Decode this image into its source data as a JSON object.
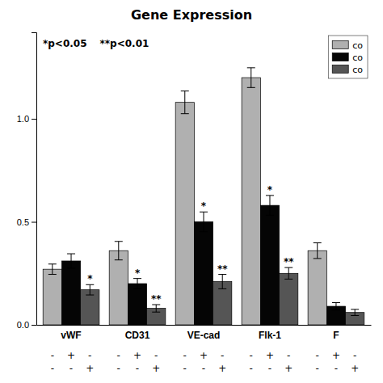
{
  "chart_data": {
    "type": "bar",
    "title": "Gene Expression",
    "categories": [
      "vWF",
      "CD31",
      "VE-cad",
      "Flk-1",
      "F"
    ],
    "series": [
      {
        "name": "co",
        "color": "#b0b0b0",
        "values": [
          0.27,
          0.36,
          1.08,
          1.2,
          0.36
        ],
        "errors": [
          0.025,
          0.045,
          0.055,
          0.048,
          0.038
        ],
        "significance": [
          null,
          null,
          null,
          null,
          null
        ],
        "conditions": [
          "-",
          "-"
        ]
      },
      {
        "name": "co",
        "color": "#050505",
        "values": [
          0.31,
          0.2,
          0.5,
          0.58,
          0.09
        ],
        "errors": [
          0.035,
          0.025,
          0.048,
          0.048,
          0.018
        ],
        "significance": [
          null,
          "*",
          "*",
          "*",
          null
        ],
        "conditions": [
          "+",
          "-"
        ]
      },
      {
        "name": "co",
        "color": "#555555",
        "values": [
          0.17,
          0.08,
          0.21,
          0.25,
          0.06
        ],
        "errors": [
          0.025,
          0.018,
          0.035,
          0.028,
          0.015
        ],
        "significance": [
          "*",
          "**",
          "**",
          "**",
          null
        ],
        "conditions": [
          "-",
          "+"
        ]
      }
    ],
    "ylim": [
      0,
      1.42
    ],
    "yticks": [
      {
        "value": 0,
        "label": "0.0"
      },
      0.5,
      {
        "value": 1,
        "label": "1.0"
      }
    ],
    "annotations": [
      "*p<0.05",
      "**p<0.01"
    ],
    "legend": "upper right",
    "grid": false
  }
}
